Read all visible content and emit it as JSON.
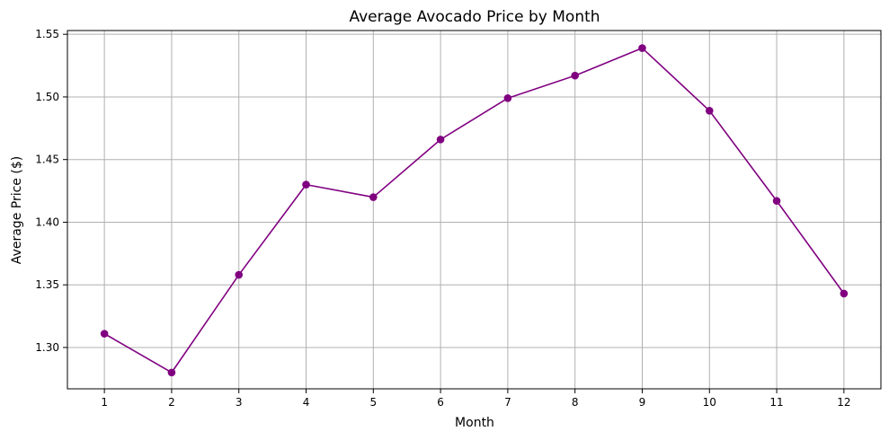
{
  "chart_data": {
    "type": "line",
    "title": "Average Avocado Price by Month",
    "xlabel": "Month",
    "ylabel": "Average Price ($)",
    "x": [
      1,
      2,
      3,
      4,
      5,
      6,
      7,
      8,
      9,
      10,
      11,
      12
    ],
    "x_tick_labels": [
      "1",
      "2",
      "3",
      "4",
      "5",
      "6",
      "7",
      "8",
      "9",
      "10",
      "11",
      "12"
    ],
    "y_ticks": [
      1.3,
      1.35,
      1.4,
      1.45,
      1.5,
      1.55
    ],
    "y_tick_labels": [
      "1.30",
      "1.35",
      "1.40",
      "1.45",
      "1.50",
      "1.55"
    ],
    "xlim": [
      0.45,
      12.55
    ],
    "ylim": [
      1.267,
      1.553
    ],
    "grid": true,
    "marker": "circle",
    "series": [
      {
        "values": [
          1.311,
          1.28,
          1.358,
          1.43,
          1.42,
          1.466,
          1.499,
          1.517,
          1.539,
          1.489,
          1.417,
          1.343
        ],
        "color": "#800080"
      }
    ]
  }
}
